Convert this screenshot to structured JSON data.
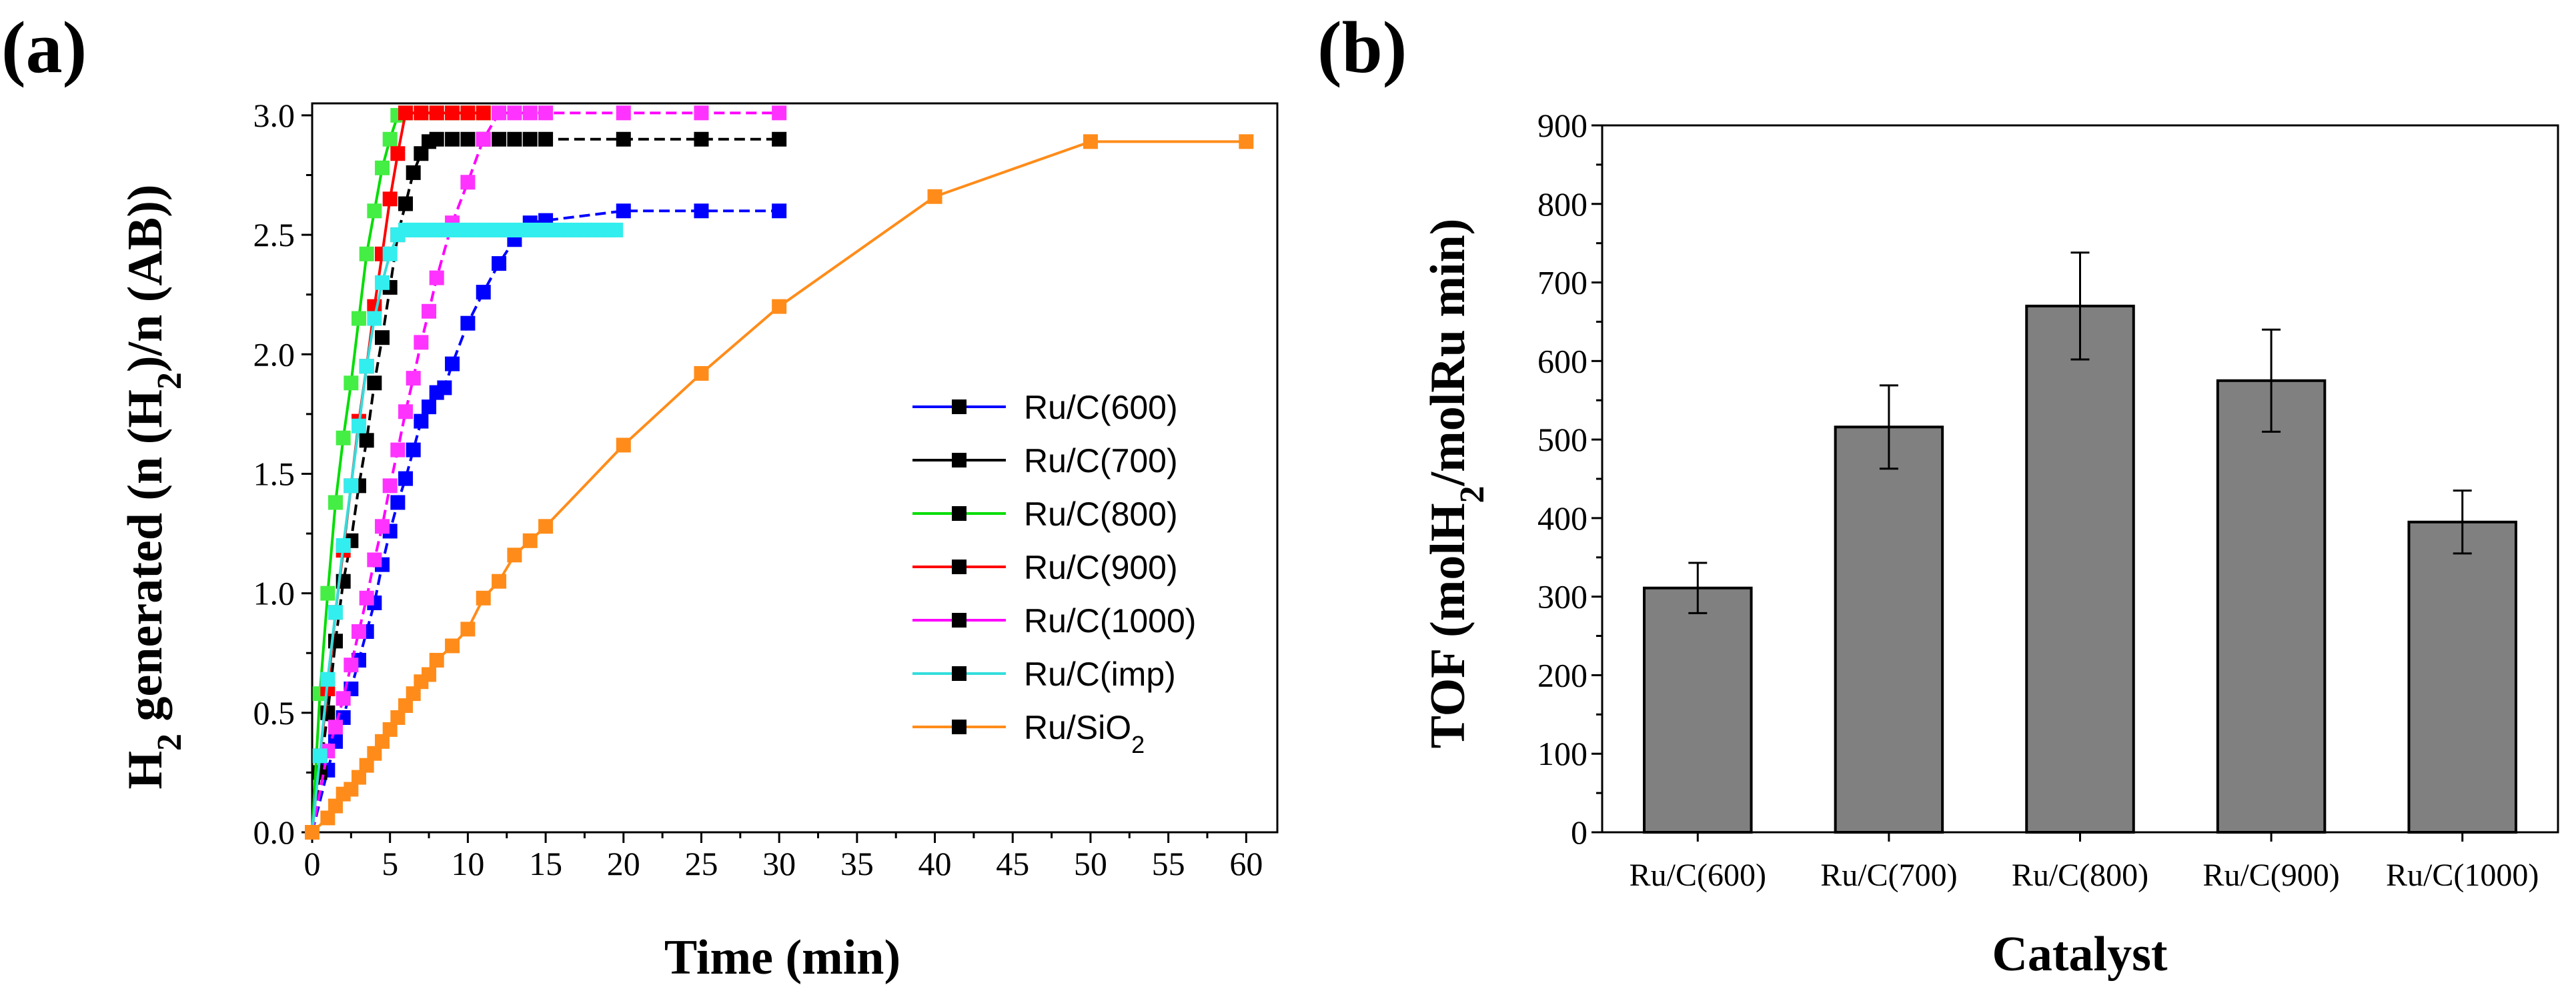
{
  "panels": {
    "a": {
      "label": "(a)"
    },
    "b": {
      "label": "(b)"
    }
  },
  "chart_data": [
    {
      "type": "line",
      "title": "",
      "xlabel": "Time (min)",
      "ylabel": "H2 generated (n (H2)/n (AB))",
      "ylabel_parts": [
        "H",
        "2",
        " generated (n (H",
        "2",
        ")/n (AB))"
      ],
      "xlim": [
        0,
        62
      ],
      "ylim": [
        0,
        3.05
      ],
      "xticks": [
        0,
        5,
        10,
        15,
        20,
        25,
        30,
        35,
        40,
        45,
        50,
        55,
        60
      ],
      "xtick_labels": [
        "0",
        "5",
        "10",
        "15",
        "20",
        "25",
        "30",
        "35",
        "40",
        "45",
        "50",
        "55",
        "60"
      ],
      "yticks": [
        0,
        0.5,
        1,
        1.5,
        2,
        2.5,
        3
      ],
      "ytick_labels": [
        "0.0",
        "0.5",
        "1.0",
        "1.5",
        "2.0",
        "2.5",
        "3.0"
      ],
      "legend_position": "right-middle",
      "series": [
        {
          "name": "Ru/C(600)",
          "name_sub": "",
          "color": "#0000ff",
          "marker_color": "#0000ff",
          "dash": true,
          "x": [
            0,
            1,
            1.5,
            2,
            2.5,
            3,
            3.5,
            4,
            4.5,
            5,
            5.5,
            6,
            6.5,
            7,
            7.5,
            8,
            8.5,
            9,
            10,
            11,
            12,
            13,
            14,
            15,
            20,
            25,
            30
          ],
          "y": [
            0,
            0.26,
            0.38,
            0.48,
            0.6,
            0.72,
            0.84,
            0.96,
            1.12,
            1.26,
            1.38,
            1.48,
            1.6,
            1.72,
            1.78,
            1.84,
            1.86,
            1.96,
            2.13,
            2.26,
            2.38,
            2.48,
            2.55,
            2.56,
            2.6,
            2.6,
            2.6
          ]
        },
        {
          "name": "Ru/C(700)",
          "name_sub": "",
          "color": "#000000",
          "marker_color": "#000000",
          "dash": true,
          "x": [
            0,
            0.5,
            1,
            1.5,
            2,
            2.5,
            3,
            3.5,
            4,
            4.5,
            5,
            5.5,
            6,
            6.5,
            7,
            7.5,
            8,
            9,
            10,
            11,
            12,
            13,
            14,
            15,
            20,
            25,
            30
          ],
          "y": [
            0,
            0.25,
            0.5,
            0.8,
            1.05,
            1.22,
            1.45,
            1.64,
            1.88,
            2.07,
            2.28,
            2.5,
            2.63,
            2.76,
            2.84,
            2.89,
            2.9,
            2.9,
            2.9,
            2.9,
            2.9,
            2.9,
            2.9,
            2.9,
            2.9,
            2.9,
            2.9
          ]
        },
        {
          "name": "Ru/C(800)",
          "name_sub": "",
          "color": "#00dd00",
          "marker_color": "#44ee44",
          "dash": false,
          "x": [
            0,
            0.5,
            1,
            1.5,
            2,
            2.5,
            3,
            3.5,
            4,
            4.5,
            5,
            5.5,
            6,
            7,
            8,
            9,
            10,
            11
          ],
          "y": [
            0,
            0.58,
            1.0,
            1.38,
            1.65,
            1.88,
            2.15,
            2.42,
            2.6,
            2.78,
            2.9,
            3.0,
            3.01,
            3.01,
            3.01,
            3.01,
            3.01,
            3.01
          ]
        },
        {
          "name": "Ru/C(900)",
          "name_sub": "",
          "color": "#ff0000",
          "marker_color": "#ff0000",
          "dash": false,
          "x": [
            0,
            0.5,
            1,
            1.5,
            2,
            2.5,
            3,
            3.5,
            4,
            4.5,
            5,
            5.5,
            6,
            7,
            8,
            9,
            10,
            11
          ],
          "y": [
            0,
            0.32,
            0.6,
            0.92,
            1.18,
            1.45,
            1.72,
            1.95,
            2.2,
            2.42,
            2.65,
            2.84,
            3.01,
            3.01,
            3.01,
            3.01,
            3.01,
            3.01
          ]
        },
        {
          "name": "Ru/C(1000)",
          "name_sub": "",
          "color": "#ff00ff",
          "marker_color": "#ff33ff",
          "dash": true,
          "x": [
            0,
            1,
            1.5,
            2,
            2.5,
            3,
            3.5,
            4,
            4.5,
            5,
            5.5,
            6,
            6.5,
            7,
            7.5,
            8,
            9,
            10,
            11,
            12,
            13,
            14,
            15,
            20,
            25,
            30
          ],
          "y": [
            0,
            0.34,
            0.44,
            0.56,
            0.7,
            0.84,
            0.98,
            1.14,
            1.28,
            1.45,
            1.6,
            1.76,
            1.9,
            2.05,
            2.18,
            2.32,
            2.55,
            2.72,
            2.9,
            3.01,
            3.01,
            3.01,
            3.01,
            3.01,
            3.01,
            3.01
          ]
        },
        {
          "name": "Ru/C(imp)",
          "name_sub": "",
          "color": "#33dddd",
          "marker_color": "#33eeee",
          "dash": false,
          "x": [
            0,
            0.5,
            1,
            1.5,
            2,
            2.5,
            3,
            3.5,
            4,
            4.5,
            5,
            5.5,
            6,
            6.5,
            7,
            7.5,
            8,
            8.5,
            9,
            9.5,
            10,
            10.5,
            11,
            11.5,
            12,
            12.5,
            13,
            13.5,
            14,
            14.5,
            15,
            15.5,
            16,
            16.5,
            17,
            17.5,
            18,
            18.5,
            19,
            19.5
          ],
          "y": [
            0,
            0.32,
            0.64,
            0.92,
            1.2,
            1.45,
            1.7,
            1.95,
            2.15,
            2.3,
            2.42,
            2.5,
            2.52,
            2.52,
            2.52,
            2.52,
            2.52,
            2.52,
            2.52,
            2.52,
            2.52,
            2.52,
            2.52,
            2.52,
            2.52,
            2.52,
            2.52,
            2.52,
            2.52,
            2.52,
            2.52,
            2.52,
            2.52,
            2.52,
            2.52,
            2.52,
            2.52,
            2.52,
            2.52,
            2.52
          ]
        },
        {
          "name": "Ru/SiO",
          "name_sub": "2",
          "color": "#ff8c1a",
          "marker_color": "#ff8c1a",
          "dash": false,
          "x": [
            0,
            1,
            1.5,
            2,
            2.5,
            3,
            3.5,
            4,
            4.5,
            5,
            5.5,
            6,
            6.5,
            7,
            7.5,
            8,
            9,
            10,
            11,
            12,
            13,
            14,
            15,
            20,
            25,
            30,
            40,
            50,
            60
          ],
          "y": [
            0,
            0.06,
            0.11,
            0.16,
            0.18,
            0.23,
            0.28,
            0.33,
            0.38,
            0.43,
            0.48,
            0.53,
            0.58,
            0.63,
            0.66,
            0.72,
            0.78,
            0.85,
            0.98,
            1.05,
            1.16,
            1.22,
            1.28,
            1.62,
            1.92,
            2.2,
            2.66,
            2.89,
            2.89
          ]
        }
      ]
    },
    {
      "type": "bar",
      "title": "",
      "xlabel": "Catalyst",
      "ylabel": "TOF (molH2/molRu min)",
      "ylabel_parts": [
        "TOF (molH",
        "2",
        "/molRu min)"
      ],
      "ylim": [
        0,
        900
      ],
      "yticks": [
        0,
        100,
        200,
        300,
        400,
        500,
        600,
        700,
        800,
        900
      ],
      "ytick_labels": [
        "0",
        "100",
        "200",
        "300",
        "400",
        "500",
        "600",
        "700",
        "800",
        "900"
      ],
      "bar_color": "#808080",
      "categories": [
        "Ru/C(600)",
        "Ru/C(700)",
        "Ru/C(800)",
        "Ru/C(900)",
        "Ru/C(1000)"
      ],
      "values": [
        311,
        516,
        670,
        575,
        395
      ],
      "errors": [
        32,
        53,
        68,
        65,
        40
      ]
    }
  ]
}
